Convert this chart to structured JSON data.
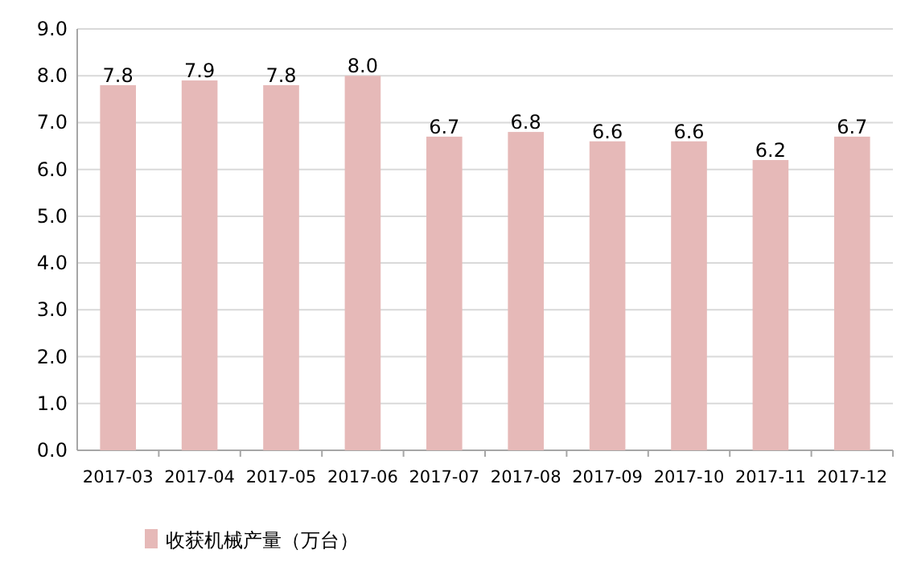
{
  "chart_data": {
    "type": "bar",
    "categories": [
      "2017-03",
      "2017-04",
      "2017-05",
      "2017-06",
      "2017-07",
      "2017-08",
      "2017-09",
      "2017-10",
      "2017-11",
      "2017-12"
    ],
    "series": [
      {
        "name": "收获机械产量（万台）",
        "color": "#e6b9b8",
        "values": [
          7.8,
          7.9,
          7.8,
          8.0,
          6.7,
          6.8,
          6.6,
          6.6,
          6.2,
          6.7
        ],
        "value_labels": [
          "7.8",
          "7.9",
          "7.8",
          "8.0",
          "6.7",
          "6.8",
          "6.6",
          "6.6",
          "6.2",
          "6.7"
        ]
      }
    ],
    "ylim": [
      0,
      9
    ],
    "yticks": [
      {
        "value": 0,
        "label": "0.0"
      },
      {
        "value": 1,
        "label": "1.0"
      },
      {
        "value": 2,
        "label": "2.0"
      },
      {
        "value": 3,
        "label": "3.0"
      },
      {
        "value": 4,
        "label": "4.0"
      },
      {
        "value": 5,
        "label": "5.0"
      },
      {
        "value": 6,
        "label": "6.0"
      },
      {
        "value": 7,
        "label": "7.0"
      },
      {
        "value": 8,
        "label": "8.0"
      },
      {
        "value": 9,
        "label": "9.0"
      }
    ],
    "grid": "y",
    "legend": "bottom"
  }
}
